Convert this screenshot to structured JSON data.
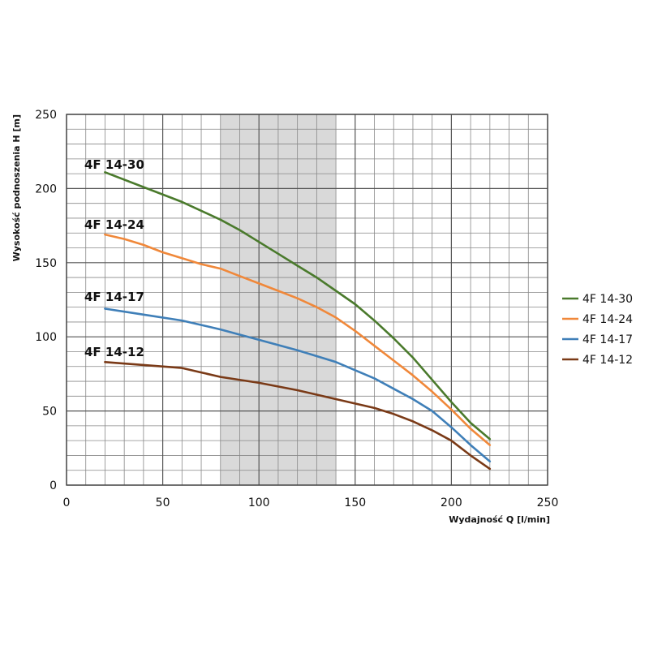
{
  "chart_data": {
    "type": "line",
    "xlabel": "Wydajność Q [l/min]",
    "ylabel": "Wysokość podnoszenia H [m]",
    "xlim": [
      0,
      250
    ],
    "ylim": [
      0,
      250
    ],
    "x_ticks": [
      0,
      50,
      100,
      150,
      200,
      250
    ],
    "y_ticks": [
      0,
      50,
      100,
      150,
      200,
      250
    ],
    "x_minor_step": 10,
    "y_minor_step": 10,
    "grid": true,
    "shaded_range_x": [
      80,
      140
    ],
    "shaded_color": "#d9d9d9",
    "legend_position": "right",
    "series": [
      {
        "name": "4F 14-30",
        "color": "#4a7a2c",
        "x": [
          20,
          40,
          60,
          80,
          90,
          100,
          110,
          120,
          130,
          140,
          150,
          160,
          170,
          180,
          190,
          200,
          210,
          220
        ],
        "y": [
          211,
          201,
          191,
          179,
          172,
          164,
          156,
          148,
          140,
          131,
          122,
          111,
          99,
          86,
          71,
          56,
          42,
          31
        ]
      },
      {
        "name": "4F 14-24",
        "color": "#f0883a",
        "x": [
          20,
          30,
          40,
          50,
          60,
          70,
          80,
          90,
          100,
          110,
          120,
          130,
          140,
          150,
          160,
          170,
          180,
          190,
          200,
          210,
          220
        ],
        "y": [
          169,
          166,
          162,
          157,
          153,
          149,
          146,
          141,
          136,
          131,
          126,
          120,
          113,
          104,
          94,
          84,
          74,
          63,
          51,
          38,
          27
        ]
      },
      {
        "name": "4F 14-17",
        "color": "#3f7fb8",
        "x": [
          20,
          40,
          60,
          80,
          100,
          120,
          140,
          160,
          170,
          180,
          190,
          200,
          210,
          220
        ],
        "y": [
          119,
          115,
          111,
          105,
          98,
          91,
          83,
          72,
          65,
          58,
          50,
          39,
          27,
          16
        ]
      },
      {
        "name": "4F 14-12",
        "color": "#7a3a17",
        "x": [
          20,
          40,
          60,
          70,
          80,
          100,
          120,
          140,
          160,
          170,
          180,
          190,
          200,
          210,
          220
        ],
        "y": [
          83,
          81,
          79,
          76,
          73,
          69,
          64,
          58,
          52,
          48,
          43,
          37,
          30,
          20,
          11
        ]
      }
    ],
    "curve_labels": [
      "4F 14-30",
      "4F 14-24",
      "4F 14-17",
      "4F 14-12"
    ]
  }
}
